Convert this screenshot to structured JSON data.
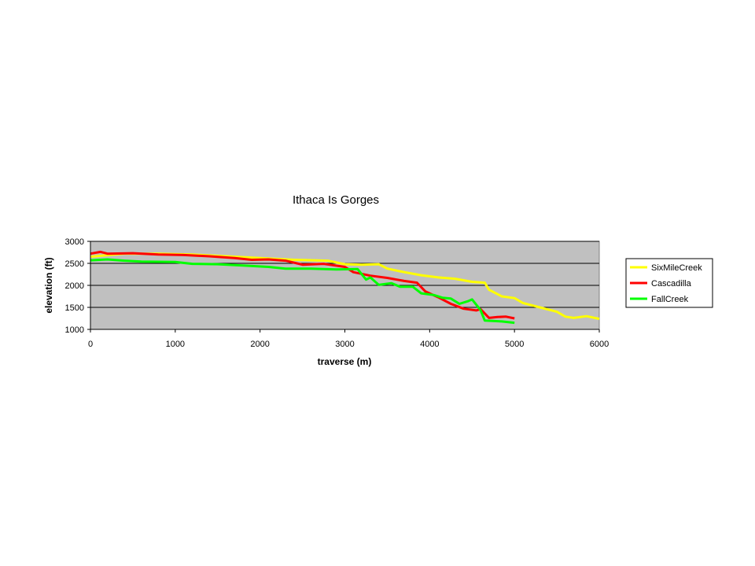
{
  "chart_data": {
    "type": "line",
    "title": "Ithaca Is Gorges",
    "xlabel": "traverse (m)",
    "ylabel": "elevation (ft)",
    "xlim": [
      0,
      6000
    ],
    "ylim": [
      1000,
      3000
    ],
    "x_ticks": [
      "0",
      "1000",
      "2000",
      "3000",
      "4000",
      "5000",
      "6000"
    ],
    "y_ticks": [
      "1000",
      "1500",
      "2000",
      "2500",
      "3000"
    ],
    "grid": "horizontal",
    "plot_background": "#c0c0c0",
    "legend_position": "right",
    "series": [
      {
        "name": "SixMileCreek",
        "color": "#ffff00",
        "points": [
          [
            0,
            2650
          ],
          [
            400,
            2720
          ],
          [
            800,
            2720
          ],
          [
            1200,
            2700
          ],
          [
            1600,
            2660
          ],
          [
            2000,
            2620
          ],
          [
            2400,
            2580
          ],
          [
            2800,
            2560
          ],
          [
            3000,
            2480
          ],
          [
            3200,
            2470
          ],
          [
            3400,
            2480
          ],
          [
            3500,
            2380
          ],
          [
            3700,
            2300
          ],
          [
            3900,
            2230
          ],
          [
            4100,
            2180
          ],
          [
            4300,
            2150
          ],
          [
            4500,
            2080
          ],
          [
            4650,
            2060
          ],
          [
            4700,
            1900
          ],
          [
            4850,
            1750
          ],
          [
            5000,
            1710
          ],
          [
            5100,
            1600
          ],
          [
            5300,
            1500
          ],
          [
            5500,
            1400
          ],
          [
            5600,
            1290
          ],
          [
            5700,
            1260
          ],
          [
            5850,
            1300
          ],
          [
            6000,
            1240
          ]
        ]
      },
      {
        "name": "Cascadilla",
        "color": "#ff0000",
        "points": [
          [
            0,
            2720
          ],
          [
            120,
            2760
          ],
          [
            200,
            2720
          ],
          [
            500,
            2730
          ],
          [
            800,
            2700
          ],
          [
            1100,
            2690
          ],
          [
            1400,
            2660
          ],
          [
            1700,
            2620
          ],
          [
            1900,
            2580
          ],
          [
            2100,
            2590
          ],
          [
            2300,
            2560
          ],
          [
            2500,
            2470
          ],
          [
            2750,
            2490
          ],
          [
            2850,
            2460
          ],
          [
            3000,
            2420
          ],
          [
            3100,
            2300
          ],
          [
            3300,
            2220
          ],
          [
            3500,
            2170
          ],
          [
            3700,
            2100
          ],
          [
            3850,
            2060
          ],
          [
            3950,
            1860
          ],
          [
            4100,
            1730
          ],
          [
            4250,
            1580
          ],
          [
            4400,
            1470
          ],
          [
            4550,
            1430
          ],
          [
            4600,
            1460
          ],
          [
            4700,
            1260
          ],
          [
            4800,
            1280
          ],
          [
            4900,
            1290
          ],
          [
            5000,
            1250
          ]
        ]
      },
      {
        "name": "FallCreek",
        "color": "#00ff00",
        "points": [
          [
            0,
            2570
          ],
          [
            200,
            2590
          ],
          [
            400,
            2560
          ],
          [
            600,
            2540
          ],
          [
            1000,
            2530
          ],
          [
            1200,
            2490
          ],
          [
            1500,
            2480
          ],
          [
            1800,
            2450
          ],
          [
            2100,
            2420
          ],
          [
            2300,
            2380
          ],
          [
            2600,
            2380
          ],
          [
            2900,
            2360
          ],
          [
            3150,
            2370
          ],
          [
            3250,
            2130
          ],
          [
            3300,
            2180
          ],
          [
            3400,
            2010
          ],
          [
            3550,
            2050
          ],
          [
            3650,
            1970
          ],
          [
            3800,
            1970
          ],
          [
            3900,
            1820
          ],
          [
            4050,
            1780
          ],
          [
            4150,
            1720
          ],
          [
            4250,
            1700
          ],
          [
            4350,
            1580
          ],
          [
            4450,
            1640
          ],
          [
            4500,
            1680
          ],
          [
            4600,
            1440
          ],
          [
            4650,
            1200
          ],
          [
            4850,
            1180
          ],
          [
            5000,
            1150
          ]
        ]
      }
    ]
  }
}
